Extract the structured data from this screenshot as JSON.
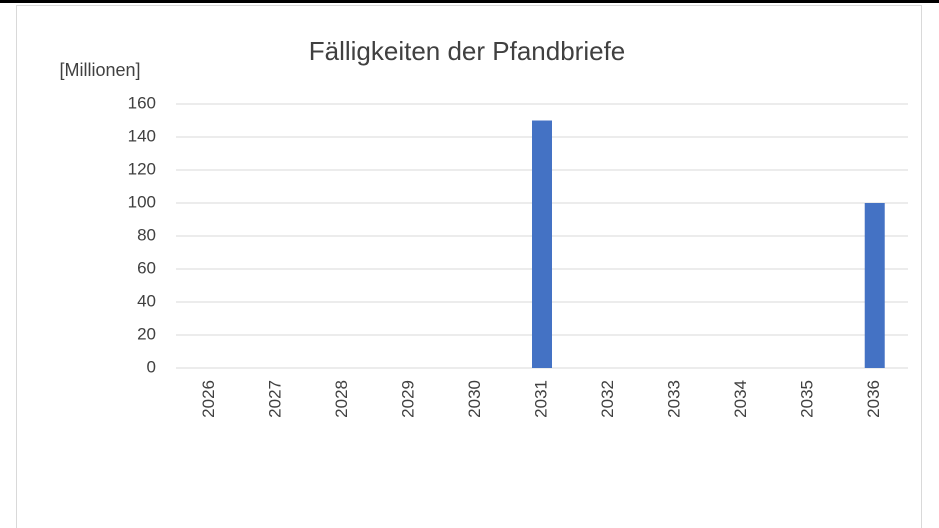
{
  "chart_data": {
    "type": "bar",
    "title": "Fälligkeiten der Pfandbriefe",
    "y_label": "[Millionen]",
    "categories": [
      "2026",
      "2027",
      "2028",
      "2029",
      "2030",
      "2031",
      "2032",
      "2033",
      "2034",
      "2035",
      "2036"
    ],
    "values": [
      0,
      0,
      0,
      0,
      0,
      150,
      0,
      0,
      0,
      0,
      100
    ],
    "color": "#4472c4",
    "ylim": [
      0,
      160
    ],
    "yticks": [
      0,
      20,
      40,
      60,
      80,
      100,
      120,
      140,
      160
    ],
    "grid": true
  }
}
